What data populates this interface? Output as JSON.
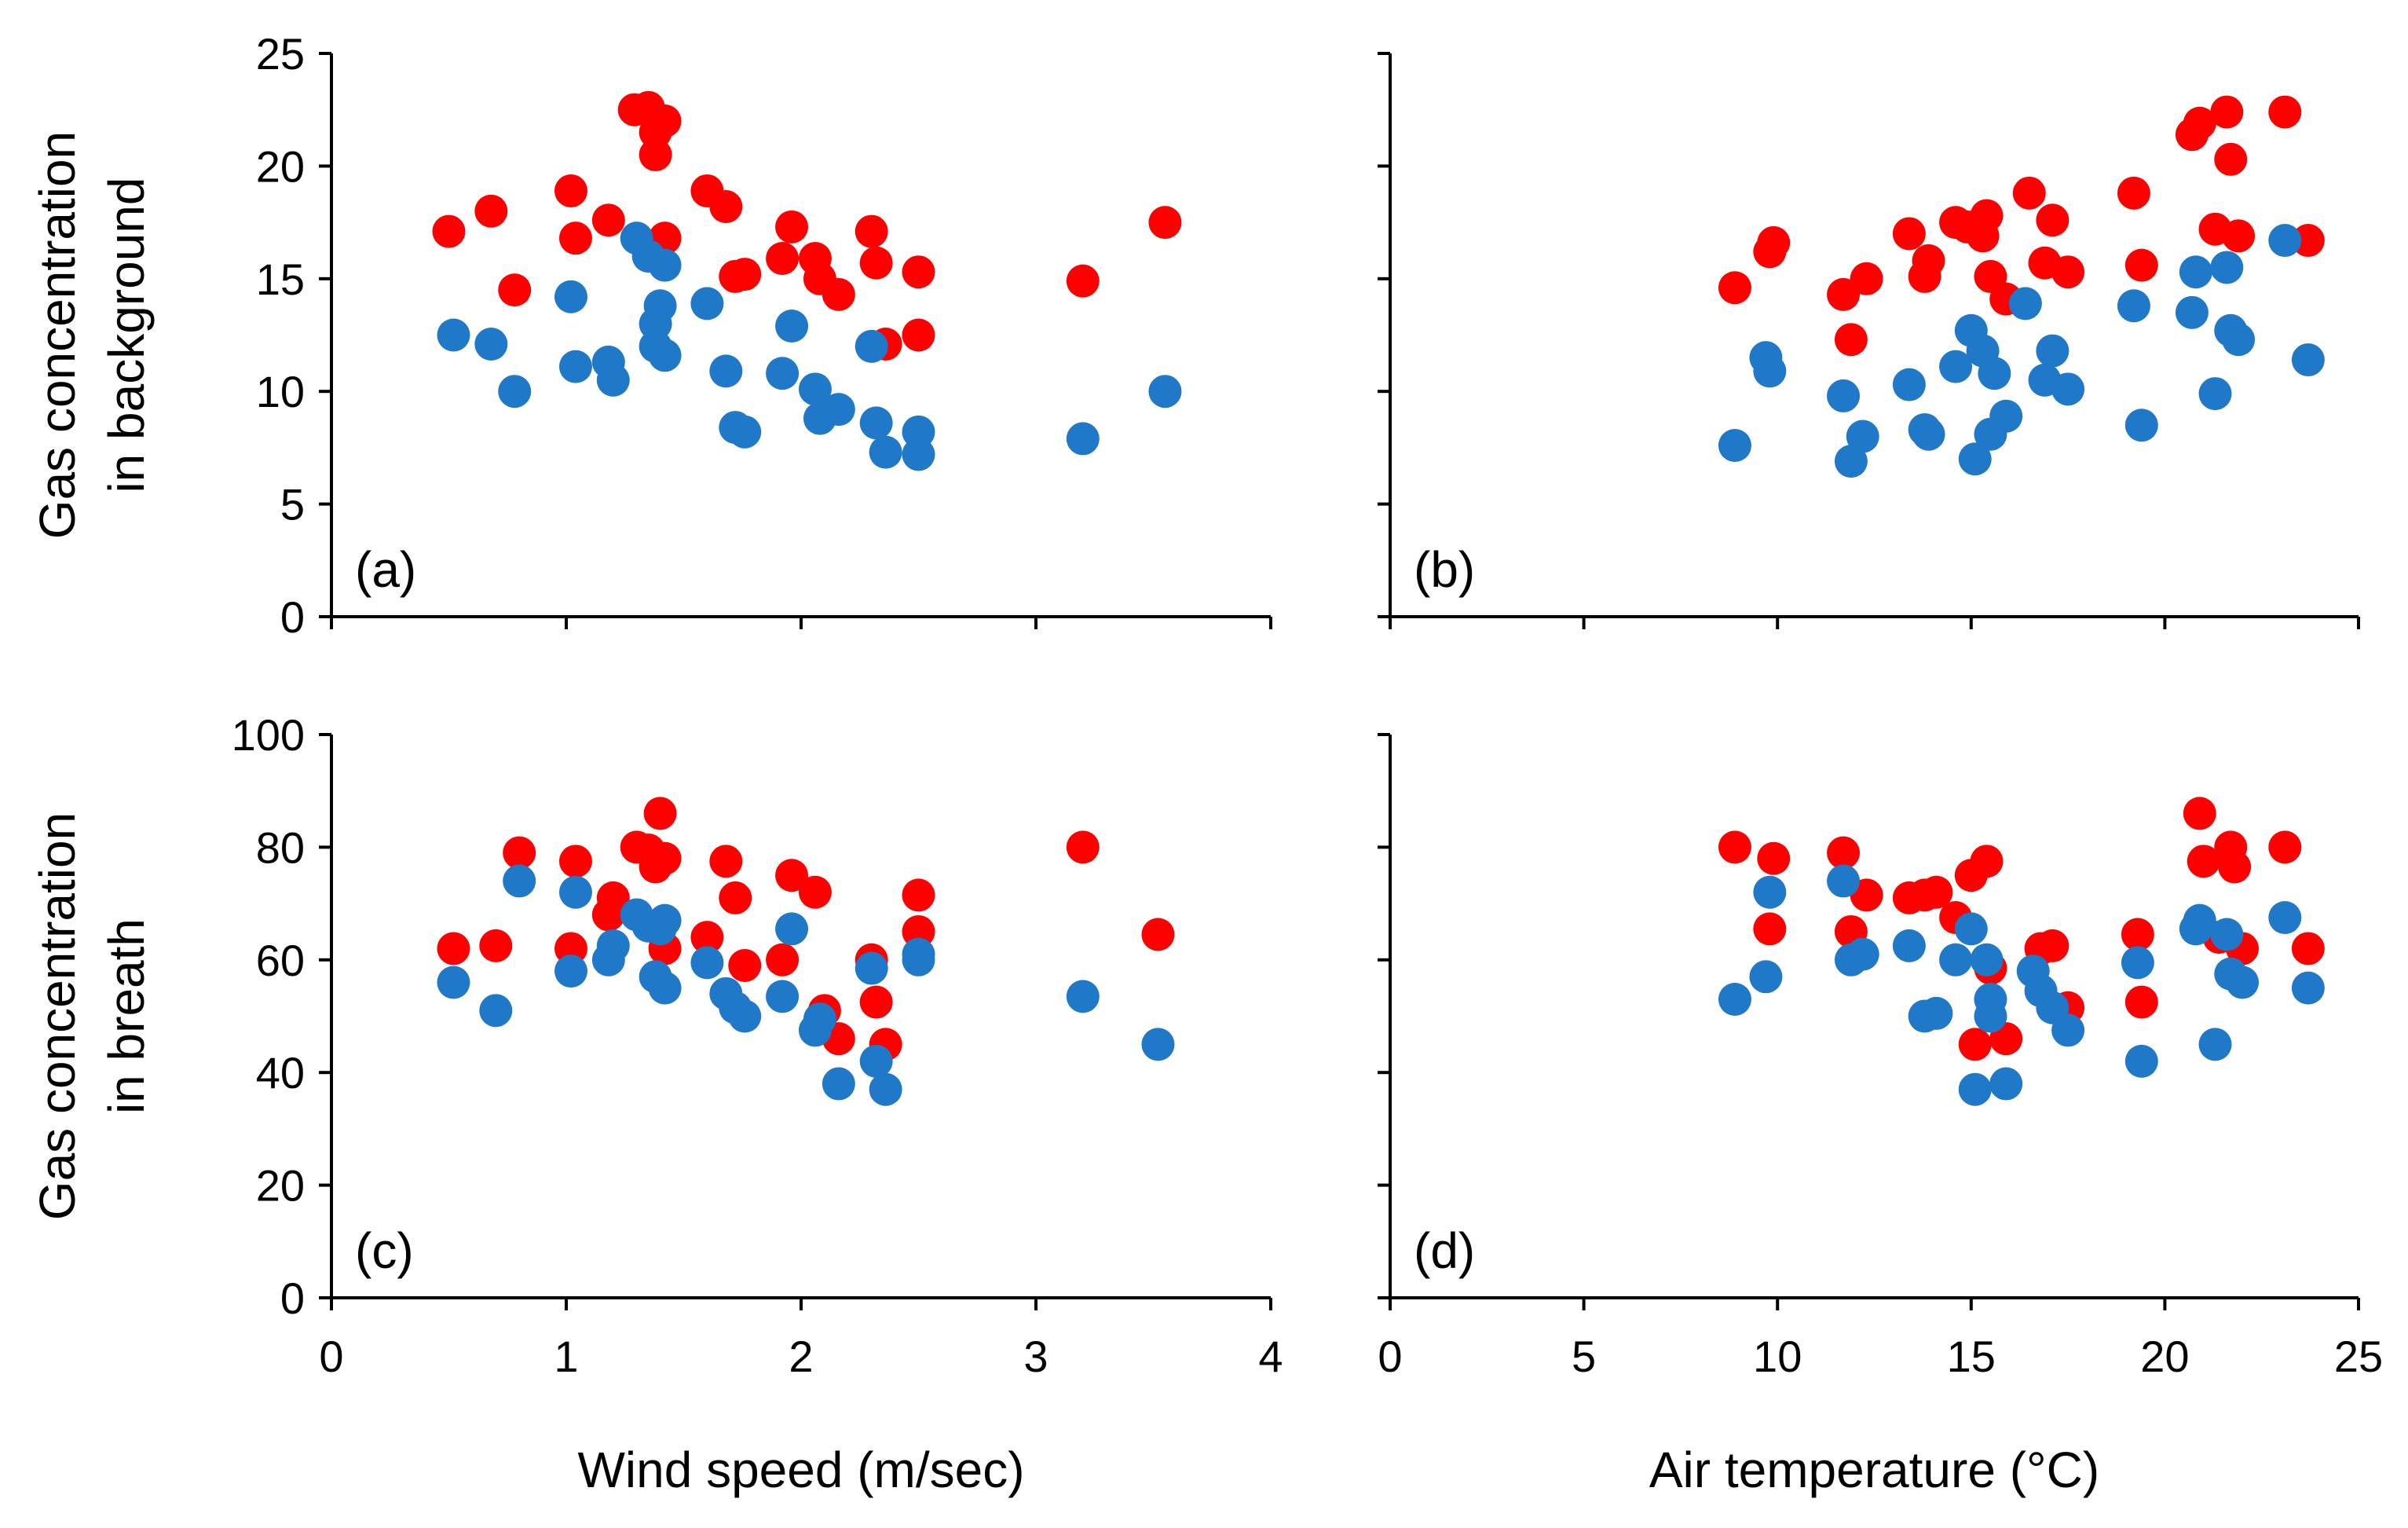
{
  "colors": {
    "red_series": "#ff0000",
    "blue_series": "#1f78c8",
    "axis": "#000000"
  },
  "chart_data": [
    {
      "type": "scatter",
      "panel": "(a)",
      "xlabel": "",
      "ylabel": [
        "Gas concentration",
        "in background"
      ],
      "xlim": [
        0,
        4
      ],
      "ylim": [
        0,
        25
      ],
      "xticks": [
        0,
        1,
        2,
        3,
        4
      ],
      "yticks": [
        0,
        5,
        10,
        15,
        20,
        25
      ],
      "show_xtick_labels": false,
      "show_ytick_labels": true,
      "series": [
        {
          "name": "red",
          "color": "#ff0000",
          "points": [
            [
              0.5,
              17.1
            ],
            [
              0.68,
              18.0
            ],
            [
              0.78,
              14.5
            ],
            [
              1.02,
              18.9
            ],
            [
              1.04,
              16.8
            ],
            [
              1.18,
              17.6
            ],
            [
              1.29,
              22.5
            ],
            [
              1.35,
              22.6
            ],
            [
              1.38,
              20.5
            ],
            [
              1.38,
              21.5
            ],
            [
              1.42,
              22.0
            ],
            [
              1.42,
              16.8
            ],
            [
              1.6,
              18.9
            ],
            [
              1.68,
              18.2
            ],
            [
              1.72,
              15.1
            ],
            [
              1.76,
              15.2
            ],
            [
              1.92,
              15.9
            ],
            [
              1.96,
              17.3
            ],
            [
              2.06,
              15.9
            ],
            [
              2.08,
              15.0
            ],
            [
              2.16,
              14.3
            ],
            [
              2.3,
              17.1
            ],
            [
              2.32,
              15.7
            ],
            [
              2.36,
              12.1
            ],
            [
              2.5,
              15.3
            ],
            [
              2.5,
              12.5
            ],
            [
              3.2,
              14.9
            ],
            [
              3.55,
              17.5
            ]
          ]
        },
        {
          "name": "blue",
          "color": "#1f78c8",
          "points": [
            [
              0.52,
              12.5
            ],
            [
              0.68,
              12.1
            ],
            [
              0.78,
              10.0
            ],
            [
              1.02,
              14.2
            ],
            [
              1.04,
              11.1
            ],
            [
              1.18,
              11.3
            ],
            [
              1.2,
              10.5
            ],
            [
              1.3,
              16.8
            ],
            [
              1.35,
              16.0
            ],
            [
              1.38,
              13.0
            ],
            [
              1.38,
              12.0
            ],
            [
              1.4,
              13.8
            ],
            [
              1.42,
              15.6
            ],
            [
              1.42,
              11.6
            ],
            [
              1.6,
              13.9
            ],
            [
              1.68,
              10.9
            ],
            [
              1.72,
              8.4
            ],
            [
              1.76,
              8.2
            ],
            [
              1.92,
              10.8
            ],
            [
              1.96,
              12.9
            ],
            [
              2.06,
              10.1
            ],
            [
              2.08,
              8.8
            ],
            [
              2.16,
              9.2
            ],
            [
              2.3,
              12.0
            ],
            [
              2.32,
              8.6
            ],
            [
              2.36,
              7.3
            ],
            [
              2.5,
              8.2
            ],
            [
              2.5,
              7.2
            ],
            [
              3.2,
              7.9
            ],
            [
              3.55,
              10.0
            ]
          ]
        }
      ]
    },
    {
      "type": "scatter",
      "panel": "(b)",
      "xlabel": "",
      "ylabel": [],
      "xlim": [
        0,
        25
      ],
      "ylim": [
        0,
        25
      ],
      "xticks": [
        0,
        5,
        10,
        15,
        20,
        25
      ],
      "yticks": [
        0,
        5,
        10,
        15,
        20,
        25
      ],
      "show_xtick_labels": false,
      "show_ytick_labels": false,
      "series": [
        {
          "name": "red",
          "color": "#ff0000",
          "points": [
            [
              8.9,
              14.6
            ],
            [
              9.8,
              16.2
            ],
            [
              9.9,
              16.6
            ],
            [
              11.7,
              14.3
            ],
            [
              11.9,
              12.3
            ],
            [
              12.3,
              15.0
            ],
            [
              13.4,
              17.0
            ],
            [
              13.8,
              15.1
            ],
            [
              13.9,
              15.8
            ],
            [
              14.6,
              17.5
            ],
            [
              14.9,
              17.3
            ],
            [
              15.3,
              16.9
            ],
            [
              15.4,
              17.8
            ],
            [
              15.5,
              15.1
            ],
            [
              15.9,
              14.1
            ],
            [
              16.5,
              18.8
            ],
            [
              16.9,
              15.7
            ],
            [
              17.1,
              17.6
            ],
            [
              17.5,
              15.3
            ],
            [
              19.2,
              18.8
            ],
            [
              19.4,
              15.6
            ],
            [
              20.7,
              21.4
            ],
            [
              20.9,
              21.9
            ],
            [
              21.3,
              17.2
            ],
            [
              21.6,
              22.4
            ],
            [
              21.7,
              20.3
            ],
            [
              21.9,
              16.9
            ],
            [
              23.1,
              22.4
            ],
            [
              23.7,
              16.7
            ]
          ]
        },
        {
          "name": "blue",
          "color": "#1f78c8",
          "points": [
            [
              8.9,
              7.6
            ],
            [
              9.7,
              11.5
            ],
            [
              9.8,
              10.9
            ],
            [
              11.7,
              9.8
            ],
            [
              11.9,
              6.9
            ],
            [
              12.2,
              8.0
            ],
            [
              13.4,
              10.3
            ],
            [
              13.8,
              8.3
            ],
            [
              13.9,
              8.1
            ],
            [
              14.6,
              11.1
            ],
            [
              15.0,
              12.7
            ],
            [
              15.1,
              7.0
            ],
            [
              15.3,
              11.8
            ],
            [
              15.5,
              8.1
            ],
            [
              15.6,
              10.8
            ],
            [
              15.9,
              8.9
            ],
            [
              16.4,
              13.9
            ],
            [
              16.9,
              10.5
            ],
            [
              17.1,
              11.8
            ],
            [
              17.5,
              10.1
            ],
            [
              19.2,
              13.8
            ],
            [
              19.4,
              8.5
            ],
            [
              20.7,
              13.5
            ],
            [
              20.8,
              15.3
            ],
            [
              21.3,
              9.9
            ],
            [
              21.6,
              15.5
            ],
            [
              21.7,
              12.7
            ],
            [
              21.9,
              12.3
            ],
            [
              23.1,
              16.7
            ],
            [
              23.7,
              11.4
            ]
          ]
        }
      ]
    },
    {
      "type": "scatter",
      "panel": "(c)",
      "xlabel": "Wind speed (m/sec)",
      "ylabel": [
        "Gas concentration",
        "in breath"
      ],
      "xlim": [
        0,
        4
      ],
      "ylim": [
        0,
        100
      ],
      "xticks": [
        0,
        1,
        2,
        3,
        4
      ],
      "yticks": [
        0,
        20,
        40,
        60,
        80,
        100
      ],
      "show_xtick_labels": true,
      "show_ytick_labels": true,
      "series": [
        {
          "name": "red",
          "color": "#ff0000",
          "points": [
            [
              0.52,
              62
            ],
            [
              0.7,
              62.5
            ],
            [
              0.8,
              79
            ],
            [
              1.02,
              62
            ],
            [
              1.04,
              77.5
            ],
            [
              1.18,
              68
            ],
            [
              1.2,
              71
            ],
            [
              1.3,
              80
            ],
            [
              1.35,
              79.5
            ],
            [
              1.38,
              76.5
            ],
            [
              1.4,
              86
            ],
            [
              1.42,
              78
            ],
            [
              1.42,
              62
            ],
            [
              1.6,
              64
            ],
            [
              1.68,
              77.5
            ],
            [
              1.72,
              71
            ],
            [
              1.76,
              59
            ],
            [
              1.92,
              60
            ],
            [
              1.96,
              75
            ],
            [
              2.06,
              72
            ],
            [
              2.1,
              51
            ],
            [
              2.16,
              46
            ],
            [
              2.3,
              60
            ],
            [
              2.32,
              52.5
            ],
            [
              2.36,
              45
            ],
            [
              2.5,
              71.5
            ],
            [
              2.5,
              65
            ],
            [
              3.2,
              80
            ],
            [
              3.52,
              64.5
            ]
          ]
        },
        {
          "name": "blue",
          "color": "#1f78c8",
          "points": [
            [
              0.52,
              56
            ],
            [
              0.7,
              51
            ],
            [
              0.8,
              74
            ],
            [
              1.02,
              58
            ],
            [
              1.04,
              72
            ],
            [
              1.18,
              60
            ],
            [
              1.2,
              62.5
            ],
            [
              1.3,
              68
            ],
            [
              1.35,
              66
            ],
            [
              1.38,
              57
            ],
            [
              1.4,
              65.5
            ],
            [
              1.42,
              67
            ],
            [
              1.42,
              55
            ],
            [
              1.6,
              59.5
            ],
            [
              1.68,
              54
            ],
            [
              1.72,
              51.5
            ],
            [
              1.76,
              50
            ],
            [
              1.92,
              53.5
            ],
            [
              1.96,
              65.5
            ],
            [
              2.06,
              47.5
            ],
            [
              2.08,
              49.5
            ],
            [
              2.16,
              38
            ],
            [
              2.3,
              58.5
            ],
            [
              2.32,
              42
            ],
            [
              2.36,
              37
            ],
            [
              2.5,
              61
            ],
            [
              2.5,
              60
            ],
            [
              3.2,
              53.5
            ],
            [
              3.52,
              45
            ]
          ]
        }
      ]
    },
    {
      "type": "scatter",
      "panel": "(d)",
      "xlabel": "Air temperature (°C)",
      "ylabel": [],
      "xlim": [
        0,
        25
      ],
      "ylim": [
        0,
        100
      ],
      "xticks": [
        0,
        5,
        10,
        15,
        20,
        25
      ],
      "yticks": [
        0,
        20,
        40,
        60,
        80,
        100
      ],
      "show_xtick_labels": true,
      "show_ytick_labels": false,
      "series": [
        {
          "name": "red",
          "color": "#ff0000",
          "points": [
            [
              8.9,
              80
            ],
            [
              9.8,
              65.5
            ],
            [
              9.9,
              78
            ],
            [
              11.7,
              79
            ],
            [
              11.9,
              65
            ],
            [
              12.3,
              71.5
            ],
            [
              13.4,
              71
            ],
            [
              13.8,
              71.5
            ],
            [
              14.1,
              72
            ],
            [
              14.6,
              67.5
            ],
            [
              15.0,
              75
            ],
            [
              15.1,
              45
            ],
            [
              15.4,
              77.5
            ],
            [
              15.5,
              58.5
            ],
            [
              15.9,
              46
            ],
            [
              16.8,
              62
            ],
            [
              17.1,
              62.5
            ],
            [
              17.5,
              51.5
            ],
            [
              19.3,
              64.5
            ],
            [
              19.4,
              52.5
            ],
            [
              20.9,
              86
            ],
            [
              21.0,
              77.5
            ],
            [
              21.4,
              64
            ],
            [
              21.7,
              80
            ],
            [
              21.8,
              76.5
            ],
            [
              22.0,
              62
            ],
            [
              23.1,
              80
            ],
            [
              23.7,
              62
            ]
          ]
        },
        {
          "name": "blue",
          "color": "#1f78c8",
          "points": [
            [
              8.9,
              53
            ],
            [
              9.7,
              57
            ],
            [
              9.8,
              72
            ],
            [
              11.7,
              74
            ],
            [
              11.9,
              60
            ],
            [
              12.2,
              61
            ],
            [
              13.4,
              62.5
            ],
            [
              13.8,
              50
            ],
            [
              14.1,
              50.5
            ],
            [
              14.6,
              60
            ],
            [
              15.0,
              65.5
            ],
            [
              15.1,
              37
            ],
            [
              15.4,
              60
            ],
            [
              15.5,
              53
            ],
            [
              15.5,
              50
            ],
            [
              15.9,
              38
            ],
            [
              16.6,
              58
            ],
            [
              16.8,
              54.5
            ],
            [
              17.1,
              51.5
            ],
            [
              17.5,
              47.5
            ],
            [
              19.3,
              59.5
            ],
            [
              19.4,
              42
            ],
            [
              20.8,
              65.5
            ],
            [
              20.9,
              67
            ],
            [
              21.3,
              45
            ],
            [
              21.6,
              64.5
            ],
            [
              21.7,
              57.5
            ],
            [
              22.0,
              56
            ],
            [
              23.1,
              67.5
            ],
            [
              23.7,
              55
            ]
          ]
        }
      ]
    }
  ]
}
